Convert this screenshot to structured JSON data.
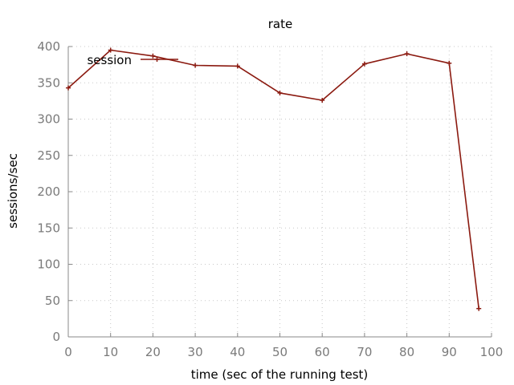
{
  "chart_data": {
    "type": "line",
    "title": "rate",
    "xlabel": "time (sec of the running test)",
    "ylabel": "sessions/sec",
    "xlim": [
      0,
      100
    ],
    "ylim": [
      0,
      400
    ],
    "xticks": [
      0,
      10,
      20,
      30,
      40,
      50,
      60,
      70,
      80,
      90,
      100
    ],
    "yticks": [
      0,
      50,
      100,
      150,
      200,
      250,
      300,
      350,
      400
    ],
    "grid": true,
    "legend_position": "top-left",
    "series": [
      {
        "name": "session",
        "color": "#8b1a10",
        "x": [
          0,
          10,
          20,
          30,
          40,
          50,
          60,
          70,
          80,
          90,
          97
        ],
        "y": [
          343,
          395,
          387,
          374,
          373,
          336,
          326,
          376,
          390,
          377,
          39
        ]
      }
    ]
  }
}
